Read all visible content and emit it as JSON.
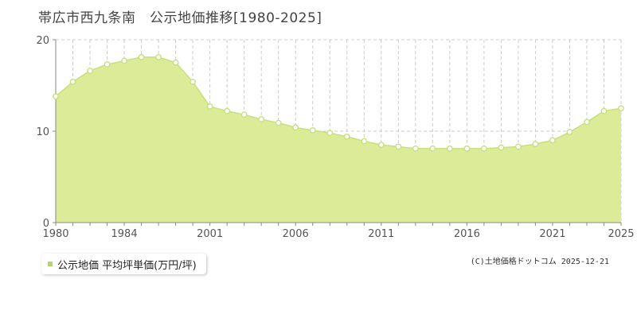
{
  "title": "帯広市西九条南　公示地価推移[1980-2025]",
  "legend": {
    "label": "公示地価 平均坪単価(万円/坪)"
  },
  "credit": "(C)土地価格ドットコム 2025-12-21",
  "colors": {
    "fill": "#dceb97",
    "line": "#c6e07e",
    "point_fill": "#ffffff",
    "point_stroke": "#c6e07e",
    "grid": "#cccccc",
    "axis": "#888888",
    "swatch": "#b5d76a"
  },
  "chart_data": {
    "type": "area",
    "title": "帯広市西九条南　公示地価推移[1980-2025]",
    "xlabel": "",
    "ylabel": "",
    "xlim": [
      1980,
      2025
    ],
    "ylim": [
      0,
      20
    ],
    "yticks": [
      0,
      10,
      20
    ],
    "xtick_labels": [
      "1980",
      "1984",
      "2001",
      "2006",
      "2011",
      "2016",
      "2021",
      "2025"
    ],
    "grid": true,
    "legend_position": "bottom-left",
    "series": [
      {
        "name": "公示地価 平均坪単価(万円/坪)",
        "points": [
          {
            "x": "1980",
            "y": 13.8
          },
          {
            "x": "1981",
            "y": 15.4
          },
          {
            "x": "1982",
            "y": 16.6
          },
          {
            "x": "1983",
            "y": 17.3
          },
          {
            "x": "1984",
            "y": 17.7
          },
          {
            "x": "1985",
            "y": 18.1
          },
          {
            "x": "1986",
            "y": 18.1
          },
          {
            "x": "1987",
            "y": 17.5
          },
          {
            "x": "2000",
            "y": 15.4
          },
          {
            "x": "2001",
            "y": 12.7
          },
          {
            "x": "2002",
            "y": 12.2
          },
          {
            "x": "2003",
            "y": 11.8
          },
          {
            "x": "2004",
            "y": 11.3
          },
          {
            "x": "2005",
            "y": 10.9
          },
          {
            "x": "2006",
            "y": 10.4
          },
          {
            "x": "2007",
            "y": 10.1
          },
          {
            "x": "2008",
            "y": 9.8
          },
          {
            "x": "2009",
            "y": 9.4
          },
          {
            "x": "2010",
            "y": 8.9
          },
          {
            "x": "2011",
            "y": 8.5
          },
          {
            "x": "2012",
            "y": 8.3
          },
          {
            "x": "2013",
            "y": 8.1
          },
          {
            "x": "2014",
            "y": 8.1
          },
          {
            "x": "2015",
            "y": 8.1
          },
          {
            "x": "2016",
            "y": 8.1
          },
          {
            "x": "2017",
            "y": 8.1
          },
          {
            "x": "2018",
            "y": 8.2
          },
          {
            "x": "2019",
            "y": 8.3
          },
          {
            "x": "2020",
            "y": 8.6
          },
          {
            "x": "2021",
            "y": 9.0
          },
          {
            "x": "2022",
            "y": 9.9
          },
          {
            "x": "2023",
            "y": 11.0
          },
          {
            "x": "2024",
            "y": 12.2
          },
          {
            "x": "2025",
            "y": 12.5
          }
        ]
      }
    ]
  }
}
